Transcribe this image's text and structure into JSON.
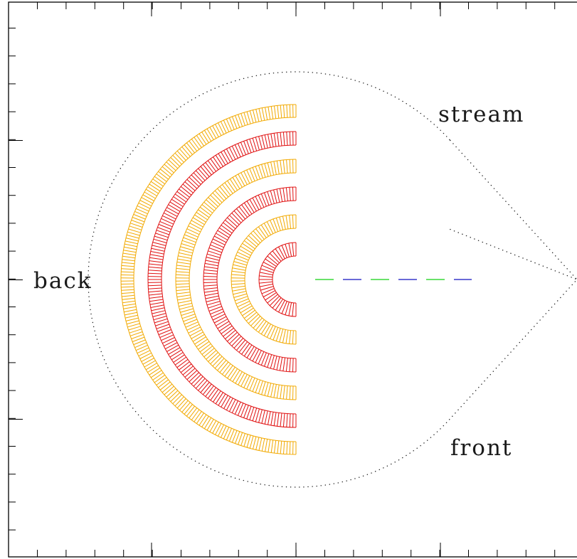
{
  "labels": {
    "stream": "stream",
    "back": "back",
    "front": "front"
  },
  "colors": {
    "orange": "#f2a900",
    "red": "#e01010",
    "blue": "#1010c0",
    "green": "#10d010",
    "outline": "#222222",
    "frame": "#000000"
  },
  "rings": [
    {
      "band": "inner",
      "back_color": "red",
      "stream_color": "green"
    },
    {
      "band": "2",
      "back_color": "orange",
      "stream_color": "blue"
    },
    {
      "band": "3",
      "back_color": "red",
      "stream_color": "green"
    },
    {
      "band": "4",
      "back_color": "orange",
      "stream_color": "blue"
    },
    {
      "band": "5",
      "back_color": "red",
      "stream_color": "green"
    },
    {
      "band": "outer",
      "back_color": "orange",
      "stream_color": "blue"
    }
  ]
}
